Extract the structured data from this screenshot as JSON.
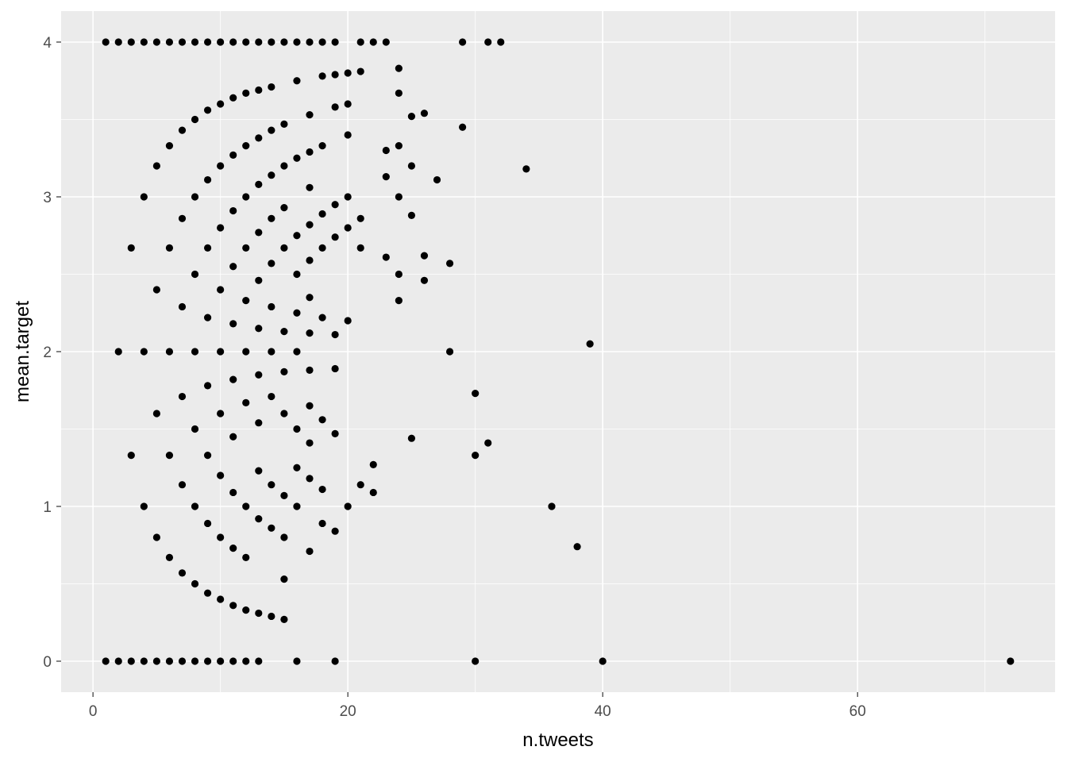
{
  "chart_data": {
    "type": "scatter",
    "xlabel": "n.tweets",
    "ylabel": "mean.target",
    "xlim": [
      -2.5,
      75.5
    ],
    "ylim": [
      -0.2,
      4.2
    ],
    "x_ticks": [
      0,
      20,
      40,
      60
    ],
    "y_ticks": [
      0,
      1,
      2,
      3,
      4
    ],
    "grid": true,
    "legend": "none",
    "point_color": "#000000",
    "panel_background": "#ebebeb",
    "grid_color": "#ffffff",
    "points": [
      [
        1,
        4
      ],
      [
        2,
        4
      ],
      [
        3,
        4
      ],
      [
        4,
        4
      ],
      [
        5,
        4
      ],
      [
        6,
        4
      ],
      [
        7,
        4
      ],
      [
        8,
        4
      ],
      [
        9,
        4
      ],
      [
        10,
        4
      ],
      [
        11,
        4
      ],
      [
        12,
        4
      ],
      [
        13,
        4
      ],
      [
        14,
        4
      ],
      [
        15,
        4
      ],
      [
        16,
        4
      ],
      [
        17,
        4
      ],
      [
        18,
        4
      ],
      [
        19,
        4
      ],
      [
        21,
        4
      ],
      [
        22,
        4
      ],
      [
        23,
        4
      ],
      [
        29,
        4
      ],
      [
        31,
        4
      ],
      [
        32,
        4
      ],
      [
        1,
        0
      ],
      [
        2,
        0
      ],
      [
        3,
        0
      ],
      [
        4,
        0
      ],
      [
        5,
        0
      ],
      [
        6,
        0
      ],
      [
        7,
        0
      ],
      [
        8,
        0
      ],
      [
        9,
        0
      ],
      [
        10,
        0
      ],
      [
        11,
        0
      ],
      [
        12,
        0
      ],
      [
        13,
        0
      ],
      [
        16,
        0
      ],
      [
        19,
        0
      ],
      [
        30,
        0
      ],
      [
        40,
        0
      ],
      [
        72,
        0
      ],
      [
        5,
        3.2
      ],
      [
        6,
        3.33
      ],
      [
        7,
        3.43
      ],
      [
        8,
        3.5
      ],
      [
        9,
        3.56
      ],
      [
        10,
        3.6
      ],
      [
        11,
        3.64
      ],
      [
        12,
        3.67
      ],
      [
        13,
        3.69
      ],
      [
        14,
        3.71
      ],
      [
        16,
        3.75
      ],
      [
        18,
        3.78
      ],
      [
        19,
        3.79
      ],
      [
        20,
        3.8
      ],
      [
        21,
        3.81
      ],
      [
        4,
        3
      ],
      [
        8,
        3
      ],
      [
        9,
        3.11
      ],
      [
        10,
        3.2
      ],
      [
        11,
        3.27
      ],
      [
        12,
        3.33
      ],
      [
        13,
        3.38
      ],
      [
        14,
        3.43
      ],
      [
        15,
        3.47
      ],
      [
        17,
        3.53
      ],
      [
        19,
        3.58
      ],
      [
        20,
        3.6
      ],
      [
        7,
        2.86
      ],
      [
        12,
        3
      ],
      [
        13,
        3.08
      ],
      [
        14,
        3.14
      ],
      [
        15,
        3.2
      ],
      [
        16,
        3.25
      ],
      [
        17,
        3.29
      ],
      [
        18,
        3.33
      ],
      [
        20,
        3.4
      ],
      [
        3,
        2.67
      ],
      [
        6,
        2.67
      ],
      [
        9,
        2.67
      ],
      [
        11,
        2.91
      ],
      [
        13,
        2.77
      ],
      [
        14,
        2.86
      ],
      [
        15,
        2.93
      ],
      [
        17,
        3.06
      ],
      [
        18,
        2.89
      ],
      [
        19,
        2.95
      ],
      [
        20,
        3
      ],
      [
        21,
        2.86
      ],
      [
        8,
        2.5
      ],
      [
        10,
        2.8
      ],
      [
        12,
        2.67
      ],
      [
        13,
        2.46
      ],
      [
        14,
        2.57
      ],
      [
        15,
        2.67
      ],
      [
        16,
        2.75
      ],
      [
        17,
        2.82
      ],
      [
        18,
        2.67
      ],
      [
        19,
        2.74
      ],
      [
        20,
        2.8
      ],
      [
        21,
        2.67
      ],
      [
        5,
        2.4
      ],
      [
        7,
        2.29
      ],
      [
        10,
        2.4
      ],
      [
        11,
        2.55
      ],
      [
        12,
        2.33
      ],
      [
        14,
        2.29
      ],
      [
        16,
        2.5
      ],
      [
        17,
        2.59
      ],
      [
        17,
        2.35
      ],
      [
        18,
        2.22
      ],
      [
        19,
        2.11
      ],
      [
        20,
        2.2
      ],
      [
        9,
        2.22
      ],
      [
        11,
        2.18
      ],
      [
        13,
        2.15
      ],
      [
        15,
        2.13
      ],
      [
        16,
        2.25
      ],
      [
        17,
        2.12
      ],
      [
        2,
        2
      ],
      [
        4,
        2
      ],
      [
        6,
        2
      ],
      [
        8,
        2
      ],
      [
        10,
        2
      ],
      [
        12,
        2
      ],
      [
        14,
        2
      ],
      [
        16,
        2
      ],
      [
        9,
        1.78
      ],
      [
        11,
        1.82
      ],
      [
        13,
        1.85
      ],
      [
        15,
        1.87
      ],
      [
        17,
        1.88
      ],
      [
        19,
        1.89
      ],
      [
        5,
        1.6
      ],
      [
        7,
        1.71
      ],
      [
        8,
        1.5
      ],
      [
        10,
        1.6
      ],
      [
        11,
        1.45
      ],
      [
        12,
        1.67
      ],
      [
        13,
        1.54
      ],
      [
        14,
        1.71
      ],
      [
        15,
        1.6
      ],
      [
        16,
        1.5
      ],
      [
        17,
        1.65
      ],
      [
        17,
        1.41
      ],
      [
        18,
        1.56
      ],
      [
        19,
        1.47
      ],
      [
        3,
        1.33
      ],
      [
        6,
        1.33
      ],
      [
        9,
        1.33
      ],
      [
        10,
        1.2
      ],
      [
        13,
        1.23
      ],
      [
        14,
        1.14
      ],
      [
        15,
        1.07
      ],
      [
        16,
        1.25
      ],
      [
        17,
        1.18
      ],
      [
        18,
        1.11
      ],
      [
        22,
        1.27
      ],
      [
        4,
        1
      ],
      [
        7,
        1.14
      ],
      [
        8,
        1
      ],
      [
        11,
        1.09
      ],
      [
        12,
        1
      ],
      [
        16,
        1
      ],
      [
        20,
        1
      ],
      [
        21,
        1.14
      ],
      [
        22,
        1.09
      ],
      [
        9,
        0.89
      ],
      [
        10,
        0.8
      ],
      [
        11,
        0.73
      ],
      [
        12,
        0.67
      ],
      [
        13,
        0.92
      ],
      [
        14,
        0.86
      ],
      [
        15,
        0.8
      ],
      [
        18,
        0.89
      ],
      [
        19,
        0.84
      ],
      [
        5,
        0.8
      ],
      [
        6,
        0.67
      ],
      [
        7,
        0.57
      ],
      [
        8,
        0.5
      ],
      [
        9,
        0.44
      ],
      [
        10,
        0.4
      ],
      [
        11,
        0.36
      ],
      [
        12,
        0.33
      ],
      [
        13,
        0.31
      ],
      [
        14,
        0.29
      ],
      [
        15,
        0.27
      ],
      [
        15,
        0.53
      ],
      [
        17,
        0.71
      ],
      [
        24,
        3.83
      ],
      [
        24,
        3.67
      ],
      [
        23,
        3.3
      ],
      [
        24,
        3.33
      ],
      [
        25,
        3.52
      ],
      [
        26,
        3.54
      ],
      [
        29,
        3.45
      ],
      [
        25,
        3.2
      ],
      [
        23,
        3.13
      ],
      [
        24,
        3
      ],
      [
        27,
        3.11
      ],
      [
        25,
        2.88
      ],
      [
        34,
        3.18
      ],
      [
        23,
        2.61
      ],
      [
        24,
        2.5
      ],
      [
        24,
        2.33
      ],
      [
        26,
        2.62
      ],
      [
        26,
        2.46
      ],
      [
        28,
        2.57
      ],
      [
        28,
        2
      ],
      [
        39,
        2.05
      ],
      [
        25,
        1.44
      ],
      [
        30,
        1.73
      ],
      [
        30,
        1.33
      ],
      [
        31,
        1.41
      ],
      [
        36,
        1
      ],
      [
        38,
        0.74
      ]
    ]
  }
}
